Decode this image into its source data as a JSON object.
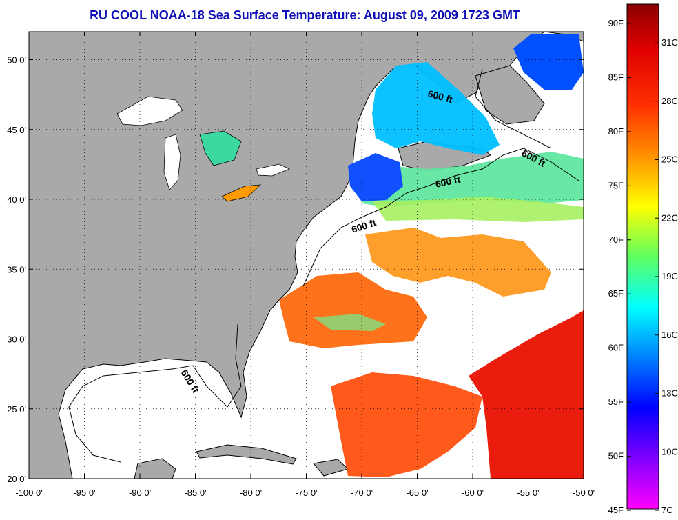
{
  "title": "RU COOL  NOAA-18  Sea Surface Temperature:  August 09, 2009 1723 GMT",
  "map": {
    "lon_range": [
      -100,
      -50
    ],
    "lat_range": [
      20,
      52
    ],
    "x_ticks": [
      "-100 0'",
      "-95 0'",
      "-90 0'",
      "-85 0'",
      "-80 0'",
      "-75 0'",
      "-70 0'",
      "-65 0'",
      "-60 0'",
      "-55 0'",
      "-50 0'"
    ],
    "y_ticks": [
      "50 0'",
      "45 0'",
      "40 0'",
      "35 0'",
      "30 0'",
      "25 0'",
      "20 0'"
    ],
    "contour_label": "600 ft",
    "grid": "dotted",
    "colors": {
      "land": "#a9a9a9",
      "water_nodata": "#ffffff",
      "coast": "#000000"
    }
  },
  "colorbar": {
    "fahrenheit": [
      "90F",
      "85F",
      "80F",
      "75F",
      "70F",
      "65F",
      "60F",
      "55F",
      "50F",
      "45F"
    ],
    "celsius": [
      "31C",
      "28C",
      "25C",
      "22C",
      "19C",
      "16C",
      "13C",
      "10C",
      "7C"
    ],
    "colors": [
      "#8b0000",
      "#ff0000",
      "#ff8000",
      "#ffff00",
      "#00ff80",
      "#00ffff",
      "#0060ff",
      "#0000ff",
      "#8000ff",
      "#ff00ff"
    ]
  }
}
